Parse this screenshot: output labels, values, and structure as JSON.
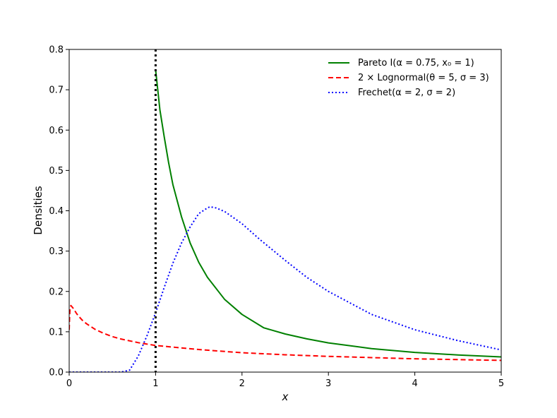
{
  "chart_data": {
    "type": "line",
    "title": "",
    "xlabel": "x",
    "ylabel": "Densities",
    "xlim": [
      0,
      5
    ],
    "ylim": [
      0,
      0.8
    ],
    "xticks": [
      0,
      1,
      2,
      3,
      4,
      5
    ],
    "xtick_labels": [
      "0",
      "1",
      "2",
      "3",
      "4",
      "5"
    ],
    "yticks": [
      0.0,
      0.1,
      0.2,
      0.3,
      0.4,
      0.5,
      0.6,
      0.7,
      0.8
    ],
    "ytick_labels": [
      "0.0",
      "0.1",
      "0.2",
      "0.3",
      "0.4",
      "0.5",
      "0.6",
      "0.7",
      "0.8"
    ],
    "grid": false,
    "legend_position": "top-right",
    "vertical_line": {
      "x": 1,
      "style": "dotted",
      "color": "#000000"
    },
    "series": [
      {
        "name": "Pareto I(α = 0.75, x₀ = 1)",
        "color": "#008000",
        "dash": "solid",
        "x": [
          1.0,
          1.05,
          1.1,
          1.15,
          1.2,
          1.3,
          1.4,
          1.5,
          1.6,
          1.8,
          2.0,
          2.25,
          2.5,
          2.75,
          3.0,
          3.5,
          4.0,
          4.5,
          5.0
        ],
        "y": [
          0.75,
          0.65,
          0.583,
          0.52,
          0.465,
          0.385,
          0.32,
          0.272,
          0.235,
          0.18,
          0.143,
          0.11,
          0.0945,
          0.0825,
          0.0725,
          0.0583,
          0.0487,
          0.0425,
          0.0376
        ]
      },
      {
        "name": "2 × Lognormal(θ = 5, σ = 3)",
        "color": "#ff0000",
        "dash": "dashed",
        "x": [
          0.0,
          0.005,
          0.01,
          0.02,
          0.04,
          0.06,
          0.08,
          0.1,
          0.15,
          0.2,
          0.3,
          0.4,
          0.5,
          0.6,
          0.8,
          1.0,
          1.5,
          2.0,
          2.5,
          3.0,
          3.5,
          4.0,
          4.5,
          5.0
        ],
        "y": [
          0.105,
          0.14,
          0.158,
          0.165,
          0.16,
          0.154,
          0.147,
          0.141,
          0.129,
          0.12,
          0.106,
          0.096,
          0.088,
          0.082,
          0.073,
          0.066,
          0.056,
          0.048,
          0.043,
          0.039,
          0.036,
          0.033,
          0.031,
          0.029
        ]
      },
      {
        "name": "Frechet(α = 2, σ = 2)",
        "color": "#0000ff",
        "dash": "dotted",
        "x": [
          0.0,
          0.4,
          0.6,
          0.7,
          0.8,
          0.9,
          1.0,
          1.1,
          1.2,
          1.3,
          1.4,
          1.5,
          1.6,
          1.63,
          1.7,
          1.8,
          2.0,
          2.2,
          2.5,
          2.75,
          3.0,
          3.5,
          4.0,
          4.5,
          5.0
        ],
        "y": [
          0.0,
          0.0,
          0.0,
          0.005,
          0.04,
          0.09,
          0.147,
          0.21,
          0.27,
          0.32,
          0.36,
          0.393,
          0.407,
          0.41,
          0.407,
          0.398,
          0.368,
          0.33,
          0.277,
          0.235,
          0.2,
          0.143,
          0.105,
          0.078,
          0.055
        ]
      }
    ]
  }
}
